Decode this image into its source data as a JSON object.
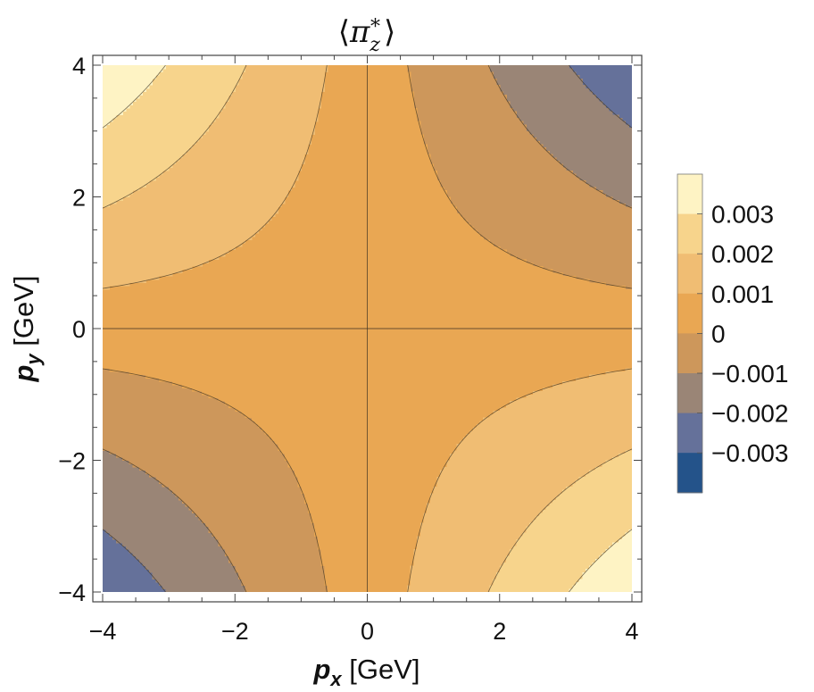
{
  "chart_data": {
    "type": "contour",
    "title": "⟨π_z*⟩",
    "title_parts": {
      "open": "⟨",
      "symbol": "π",
      "sub": "z",
      "sup": "*",
      "close": "⟩"
    },
    "xlabel": {
      "var": "p",
      "sub": "x",
      "unit": " [GeV]"
    },
    "ylabel": {
      "var": "p",
      "sub": "y",
      "unit": " [GeV]"
    },
    "xlim": [
      -4,
      4
    ],
    "ylim": [
      -4,
      4
    ],
    "x_ticks": [
      -4,
      -2,
      0,
      2,
      4
    ],
    "y_ticks": [
      -4,
      -2,
      0,
      2,
      4
    ],
    "x_tick_labels": [
      "−4",
      "−2",
      "0",
      "2",
      "4"
    ],
    "y_tick_labels": [
      "−4",
      "−2",
      "0",
      "2",
      "4"
    ],
    "function": "z = -k * px * py (antisymmetric saddle)",
    "k": 0.000205,
    "contour_levels": [
      -0.0035,
      -0.0025,
      -0.0015,
      -0.0005,
      0.0005,
      0.0015,
      0.0025,
      0.0035
    ],
    "band_colors": [
      "#24538a",
      "#65719a",
      "#9a8576",
      "#cd975b",
      "#e9a753",
      "#f0bd73",
      "#f7d48c",
      "#fef3c4"
    ],
    "legend": {
      "labels": [
        "0.003",
        "0.002",
        "0.001",
        "0",
        "−0.001",
        "−0.002",
        "−0.003"
      ],
      "colors_top_to_bottom": [
        "#fef3c4",
        "#f7d48c",
        "#f0bd73",
        "#e9a753",
        "#cd975b",
        "#9a8576",
        "#65719a",
        "#24538a"
      ]
    }
  }
}
